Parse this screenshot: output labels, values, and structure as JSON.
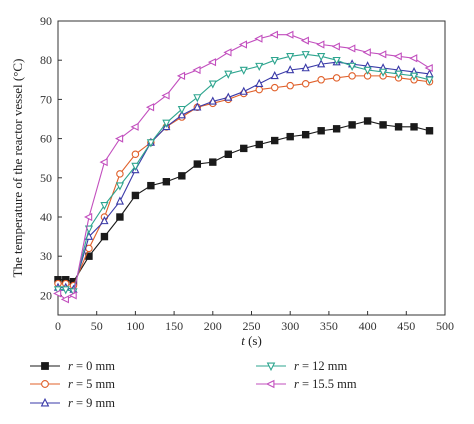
{
  "chart_data": {
    "type": "line",
    "xlabel_var": "t",
    "xlabel_unit": " (s)",
    "ylabel": "The temperature of the reactor vessel (°C)",
    "xlim": [
      0,
      500
    ],
    "ylim": [
      15,
      90
    ],
    "xticks": [
      "0",
      "50",
      "100",
      "150",
      "200",
      "250",
      "300",
      "350",
      "400",
      "450",
      "500"
    ],
    "yticks": [
      "20",
      "30",
      "40",
      "50",
      "60",
      "70",
      "80",
      "90"
    ],
    "legend_position": "bottom",
    "series": [
      {
        "name": "r = 0 mm",
        "label_var": "r",
        "label_rest": " = 0 mm",
        "color": "#1a1a1a",
        "marker": "square",
        "x": [
          0,
          10,
          20,
          40,
          60,
          80,
          100,
          120,
          140,
          160,
          180,
          200,
          220,
          240,
          260,
          280,
          300,
          320,
          340,
          360,
          380,
          400,
          420,
          440,
          460,
          480
        ],
        "y": [
          24,
          24,
          23.5,
          30,
          35,
          40,
          45.5,
          48,
          49,
          50.5,
          53.5,
          54,
          56,
          57.5,
          58.5,
          59.5,
          60.5,
          61,
          62,
          62.5,
          63.5,
          64.5,
          63.5,
          63,
          63,
          62
        ]
      },
      {
        "name": "r = 5 mm",
        "label_var": "r",
        "label_rest": " = 5 mm",
        "color": "#e0602a",
        "marker": "circle",
        "x": [
          0,
          10,
          20,
          40,
          60,
          80,
          100,
          120,
          140,
          160,
          180,
          200,
          220,
          240,
          260,
          280,
          300,
          320,
          340,
          360,
          380,
          400,
          420,
          440,
          460,
          480
        ],
        "y": [
          23,
          23,
          22.5,
          32,
          40,
          51,
          56,
          59,
          63,
          65.5,
          68,
          69,
          70,
          71.5,
          72.5,
          73,
          73.5,
          74,
          75,
          75.5,
          76,
          76,
          76,
          75.5,
          75,
          74.5
        ]
      },
      {
        "name": "r = 9 mm",
        "label_var": "r",
        "label_rest": " = 9 mm",
        "color": "#3a3aa8",
        "marker": "triangle-up",
        "x": [
          0,
          10,
          20,
          40,
          60,
          80,
          100,
          120,
          140,
          160,
          180,
          200,
          220,
          240,
          260,
          280,
          300,
          320,
          340,
          360,
          380,
          400,
          420,
          440,
          460,
          480
        ],
        "y": [
          22,
          22,
          21.5,
          35,
          39,
          44,
          52,
          59,
          63,
          66,
          68,
          69.5,
          70.5,
          72,
          74,
          76,
          77.5,
          78,
          79,
          79.5,
          79,
          78.5,
          78,
          77.5,
          77,
          76.5
        ]
      },
      {
        "name": "r = 12 mm",
        "label_var": "r",
        "label_rest": " = 12 mm",
        "color": "#2ea58f",
        "marker": "triangle-down",
        "x": [
          0,
          10,
          20,
          40,
          60,
          80,
          100,
          120,
          140,
          160,
          180,
          200,
          220,
          240,
          260,
          280,
          300,
          320,
          340,
          360,
          380,
          400,
          420,
          440,
          460,
          480
        ],
        "y": [
          21.5,
          21.5,
          21,
          37,
          43,
          48,
          53,
          59,
          64,
          67.5,
          70.5,
          74,
          76.5,
          77.5,
          78.5,
          80,
          81,
          81.5,
          81,
          80,
          78.5,
          77.5,
          77,
          76.5,
          76,
          75
        ]
      },
      {
        "name": "r = 15.5 mm",
        "label_var": "r",
        "label_rest": " = 15.5 mm",
        "color": "#c24fbe",
        "marker": "triangle-left",
        "x": [
          0,
          10,
          20,
          40,
          60,
          80,
          100,
          120,
          140,
          160,
          180,
          200,
          220,
          240,
          260,
          280,
          300,
          320,
          340,
          360,
          380,
          400,
          420,
          440,
          460,
          480
        ],
        "y": [
          20.5,
          19,
          20,
          40,
          54,
          60,
          63,
          68,
          71,
          76,
          77.5,
          79.5,
          82,
          84,
          85.5,
          86.5,
          86.5,
          85,
          84,
          83.5,
          83,
          82,
          81.5,
          81,
          80.5,
          78
        ]
      }
    ]
  }
}
